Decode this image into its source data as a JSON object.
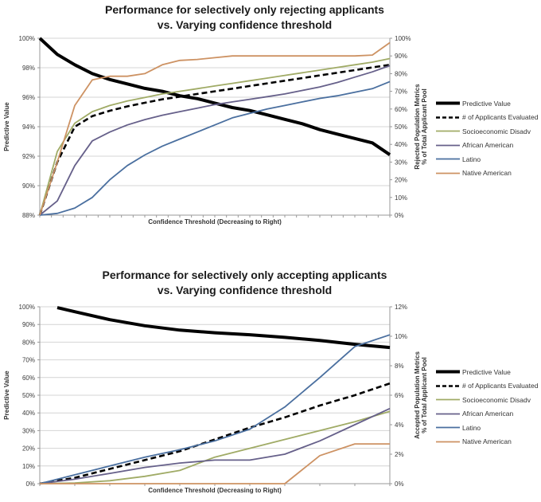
{
  "chart_data": [
    {
      "type": "line",
      "title_line1": "Performance for selectively only rejecting applicants",
      "title_line2": "vs. Varying confidence threshold",
      "xlabel": "Confidence Threshold (Decreasing to Right)",
      "ylabel_left": "Predictive Value",
      "ylabel_right_line1": "Rejected Population  Metrics",
      "ylabel_right_line2": "% of Total Applicant Pool",
      "grid": "on",
      "legend_position": "right",
      "x_note": "x axis has unlabeled tick marks; x values are % of axis width",
      "x_tick_count": 30,
      "left_axis": {
        "min": 88,
        "max": 100,
        "ticks": [
          "100%",
          "98%",
          "96%",
          "94%",
          "92%",
          "90%",
          "88%"
        ]
      },
      "right_axis": {
        "min": 0,
        "max": 100,
        "ticks": [
          "100%",
          "90%",
          "80%",
          "70%",
          "60%",
          "50%",
          "40%",
          "30%",
          "20%",
          "10%",
          "0%"
        ]
      },
      "x": [
        0,
        5,
        10,
        15,
        20,
        25,
        30,
        35,
        40,
        45,
        50,
        55,
        60,
        65,
        70,
        75,
        80,
        85,
        90,
        95,
        100
      ],
      "series": [
        {
          "name": "Predictive Value",
          "slug": "predictive-value",
          "axis": "left",
          "color": "#000000",
          "width": 4,
          "dash": null,
          "values": [
            100,
            98.9,
            98.2,
            97.6,
            97.2,
            96.9,
            96.6,
            96.4,
            96.1,
            95.9,
            95.6,
            95.3,
            95.1,
            94.8,
            94.5,
            94.2,
            93.8,
            93.5,
            93.2,
            92.9,
            92.1
          ]
        },
        {
          "name": "# of Applicants Evaluated",
          "slug": "applicants-evaluated",
          "axis": "right",
          "color": "#000000",
          "width": 2.6,
          "dash": "7 4",
          "values": [
            0,
            30,
            50,
            56,
            59,
            61.5,
            63.5,
            65.5,
            67,
            68.5,
            70,
            71.5,
            73,
            74.5,
            76,
            77.5,
            79,
            80.5,
            82,
            83.5,
            85
          ]
        },
        {
          "name": "Socioeconomic Disadv",
          "slug": "socioeconomic-disadv",
          "axis": "right",
          "color": "#a0ab66",
          "width": 1.8,
          "dash": null,
          "values": [
            0,
            36,
            52,
            58.5,
            62,
            64.5,
            66.5,
            68.5,
            70,
            71.5,
            73,
            74.5,
            76,
            77.5,
            79,
            80.5,
            82,
            83.5,
            85,
            86.5,
            88.5
          ]
        },
        {
          "name": "African American",
          "slug": "african-american",
          "axis": "right",
          "color": "#66608a",
          "width": 1.8,
          "dash": null,
          "values": [
            0,
            8,
            28,
            42,
            47,
            51,
            54,
            56.5,
            58.5,
            60.5,
            62.5,
            64,
            65.5,
            67,
            68.5,
            70.5,
            72.5,
            75,
            78,
            81,
            84.5
          ]
        },
        {
          "name": "Latino",
          "slug": "latino",
          "axis": "right",
          "color": "#4a6f9f",
          "width": 1.8,
          "dash": null,
          "values": [
            0,
            1,
            4,
            10,
            20,
            28,
            34,
            39,
            43,
            47,
            51,
            55,
            57.5,
            60,
            62,
            64,
            66,
            67.5,
            69.5,
            71.5,
            75.5
          ]
        },
        {
          "name": "Native American",
          "slug": "native-american",
          "axis": "right",
          "color": "#cd9263",
          "width": 1.8,
          "dash": null,
          "values": [
            0,
            30,
            62,
            76.5,
            78.5,
            78.5,
            80,
            85,
            87.5,
            88,
            89,
            90,
            90,
            90,
            90,
            90,
            90,
            90,
            90,
            90.5,
            97.5
          ]
        }
      ]
    },
    {
      "type": "line",
      "title_line1": "Performance for selectively only accepting applicants",
      "title_line2": "vs. Varying confidence threshold",
      "xlabel": "Confidence Threshold (Decreasing to Right)",
      "ylabel_left": "Predictive Value",
      "ylabel_right_line1": "Accepted Population  Metrics",
      "ylabel_right_line2": "% of Total Applicant Pool",
      "grid": "on",
      "legend_position": "right",
      "x_note": "x axis has unlabeled tick marks; x values are % of axis width",
      "x_tick_count": 10,
      "left_axis": {
        "min": 0,
        "max": 100,
        "ticks": [
          "100%",
          "90%",
          "80%",
          "70%",
          "60%",
          "50%",
          "40%",
          "30%",
          "20%",
          "10%",
          "0%"
        ]
      },
      "right_axis": {
        "min": 0,
        "max": 12,
        "ticks": [
          "12%",
          "10%",
          "8%",
          "6%",
          "4%",
          "2%",
          "0%"
        ]
      },
      "x": [
        0,
        10,
        20,
        30,
        40,
        50,
        60,
        70,
        80,
        90,
        100
      ],
      "series": [
        {
          "name": "Predictive Value",
          "slug": "predictive-value",
          "axis": "left",
          "color": "#000000",
          "width": 4,
          "dash": null,
          "x": [
            5,
            10,
            20,
            30,
            40,
            50,
            60,
            70,
            80,
            90,
            100
          ],
          "values": [
            99.5,
            97.2,
            92.7,
            89.3,
            86.8,
            85.3,
            84.2,
            82.7,
            81,
            78.8,
            77
          ]
        },
        {
          "name": "# of Applicants Evaluated",
          "slug": "applicants-evaluated",
          "axis": "right",
          "color": "#000000",
          "width": 2.6,
          "dash": "7 4",
          "values": [
            0,
            0.4,
            1.0,
            1.6,
            2.2,
            3.0,
            3.8,
            4.5,
            5.3,
            6.0,
            6.8
          ]
        },
        {
          "name": "Socioeconomic Disadv",
          "slug": "socioeconomic-disadv",
          "axis": "right",
          "color": "#a0ab66",
          "width": 1.8,
          "dash": null,
          "values": [
            0,
            0.05,
            0.2,
            0.5,
            0.9,
            1.8,
            2.4,
            3.0,
            3.6,
            4.2,
            4.9
          ]
        },
        {
          "name": "African American",
          "slug": "african-american",
          "axis": "right",
          "color": "#66608a",
          "width": 1.8,
          "dash": null,
          "values": [
            0,
            0.3,
            0.7,
            1.1,
            1.4,
            1.6,
            1.6,
            2.0,
            2.9,
            4.0,
            5.1
          ]
        },
        {
          "name": "Latino",
          "slug": "latino",
          "axis": "right",
          "color": "#4a6f9f",
          "width": 1.8,
          "dash": null,
          "values": [
            0,
            0.6,
            1.2,
            1.8,
            2.3,
            2.9,
            3.7,
            5.2,
            7.2,
            9.3,
            10.1
          ]
        },
        {
          "name": "Native American",
          "slug": "native-american",
          "axis": "right",
          "color": "#cd9263",
          "width": 1.8,
          "dash": null,
          "values": [
            0,
            0,
            0,
            0,
            0,
            0,
            0,
            0,
            1.9,
            2.7,
            2.7
          ]
        }
      ]
    }
  ]
}
